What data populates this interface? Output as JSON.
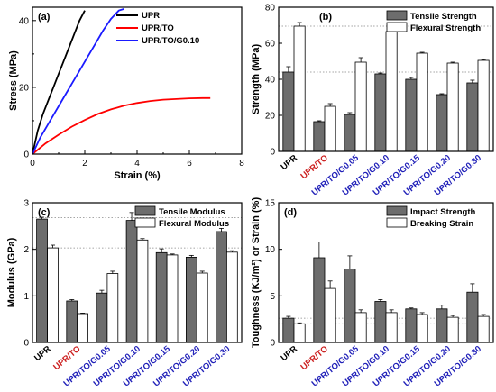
{
  "colors": {
    "black": "#000000",
    "red": "#ff0000",
    "blue": "#1a1aff",
    "gray_bar": "#6d6d6d",
    "white_bar": "#ffffff",
    "cat_red": "#cc2020",
    "cat_blue": "#1f1fb8"
  },
  "chart_data": [
    {
      "id": "a",
      "type": "line",
      "panel_label": "(a)",
      "xlabel": "Strain (%)",
      "ylabel": "Stress (MPa)",
      "xlim": [
        0,
        8
      ],
      "ylim": [
        0,
        44
      ],
      "xticks": [
        0,
        2,
        4,
        6,
        8
      ],
      "yticks": [
        0,
        20,
        40
      ],
      "legend_position": "top-left",
      "series": [
        {
          "name": "UPR",
          "color": "#000000",
          "x": [
            0,
            0.2,
            0.4,
            0.6,
            0.8,
            1.0,
            1.2,
            1.4,
            1.6,
            1.8,
            2.0
          ],
          "y": [
            0,
            7,
            12,
            16,
            20,
            24,
            28,
            32,
            36,
            40,
            43
          ]
        },
        {
          "name": "UPR/TO",
          "color": "#ff0000",
          "x": [
            0,
            0.5,
            1.0,
            1.5,
            2.0,
            2.5,
            3.0,
            3.5,
            4.0,
            4.5,
            5.0,
            5.5,
            6.0,
            6.5,
            6.8
          ],
          "y": [
            0,
            3.2,
            5.8,
            8.2,
            10.2,
            12.0,
            13.4,
            14.5,
            15.3,
            15.9,
            16.3,
            16.5,
            16.7,
            16.8,
            16.8
          ]
        },
        {
          "name": "UPR/TO/G0.10",
          "color": "#1a1aff",
          "x": [
            0,
            0.3,
            0.6,
            0.9,
            1.2,
            1.5,
            1.8,
            2.1,
            2.4,
            2.7,
            3.0,
            3.3,
            3.5
          ],
          "y": [
            0,
            5,
            9,
            13,
            17,
            21,
            25,
            29,
            33,
            37,
            40.5,
            43,
            43.5
          ]
        }
      ]
    },
    {
      "id": "b",
      "type": "bar",
      "panel_label": "(b)",
      "ylabel": "Strength (MPa)",
      "ylim": [
        0,
        80
      ],
      "yticks": [
        0,
        20,
        40,
        60,
        80
      ],
      "legend_position": "top-right",
      "categories": [
        "UPR",
        "UPR/TO",
        "UPR/TO/G0.05",
        "UPR/TO/G0.10",
        "UPR/TO/G0.15",
        "UPR/TO/G0.20",
        "UPR/TO/G0.30"
      ],
      "category_colors": [
        "#000000",
        "#cc2020",
        "#1f1fb8",
        "#1f1fb8",
        "#1f1fb8",
        "#1f1fb8",
        "#1f1fb8"
      ],
      "reference_lines": [
        69.5,
        44
      ],
      "series": [
        {
          "name": "Tensile Strength",
          "fill": "#6d6d6d",
          "values": [
            44,
            16.5,
            20.5,
            43,
            40,
            31.5,
            38
          ],
          "errors": [
            3,
            0.5,
            1,
            0.5,
            1,
            0.5,
            1.5
          ]
        },
        {
          "name": "Flexural Strength",
          "fill": "#ffffff",
          "values": [
            69.5,
            25,
            49.5,
            66.5,
            54.5,
            49,
            50.5
          ],
          "errors": [
            2,
            1.5,
            2.5,
            2.5,
            0.5,
            0.5,
            0.5
          ]
        }
      ]
    },
    {
      "id": "c",
      "type": "bar",
      "panel_label": "(c)",
      "ylabel": "Modulus (GPa)",
      "ylim": [
        0,
        3
      ],
      "yticks": [
        0,
        1,
        2,
        3
      ],
      "legend_position": "top-right",
      "categories": [
        "UPR",
        "UPR/TO",
        "UPR/TO/G0.05",
        "UPR/TO/G0.10",
        "UPR/TO/G0.15",
        "UPR/TO/G0.20",
        "UPR/TO/G0.30"
      ],
      "category_colors": [
        "#000000",
        "#cc2020",
        "#1f1fb8",
        "#1f1fb8",
        "#1f1fb8",
        "#1f1fb8",
        "#1f1fb8"
      ],
      "reference_lines": [
        2.68,
        2.03
      ],
      "series": [
        {
          "name": "Tensile Modulus",
          "fill": "#6d6d6d",
          "values": [
            2.65,
            0.89,
            1.06,
            2.62,
            1.93,
            1.83,
            2.38
          ],
          "errors": [
            0.04,
            0.03,
            0.06,
            0.17,
            0.08,
            0.04,
            0.07
          ]
        },
        {
          "name": "Flexural Modulus",
          "fill": "#ffffff",
          "values": [
            2.03,
            0.62,
            1.48,
            2.2,
            1.88,
            1.49,
            1.94
          ],
          "errors": [
            0.06,
            0.01,
            0.05,
            0.03,
            0.02,
            0.04,
            0.03
          ]
        }
      ]
    },
    {
      "id": "d",
      "type": "bar",
      "panel_label": "(d)",
      "ylabel": "Toughness (KJ/m²) or Strain (%)",
      "ylim": [
        0,
        15
      ],
      "yticks": [
        0,
        5,
        10,
        15
      ],
      "legend_position": "top-right",
      "categories": [
        "UPR",
        "UPR/TO",
        "UPR/TO/G0.05",
        "UPR/TO/G0.10",
        "UPR/TO/G0.15",
        "UPR/TO/G0.20",
        "UPR/TO/G0.30"
      ],
      "category_colors": [
        "#000000",
        "#cc2020",
        "#1f1fb8",
        "#1f1fb8",
        "#1f1fb8",
        "#1f1fb8",
        "#1f1fb8"
      ],
      "reference_lines": [
        2.6,
        2.0
      ],
      "series": [
        {
          "name": "Impact Strength",
          "fill": "#6d6d6d",
          "values": [
            2.6,
            9.1,
            7.9,
            4.4,
            3.6,
            3.6,
            5.4
          ],
          "errors": [
            0.2,
            1.7,
            1.4,
            0.2,
            0.1,
            0.4,
            0.9
          ]
        },
        {
          "name": "Breaking Strain",
          "fill": "#ffffff",
          "values": [
            2.0,
            5.8,
            3.2,
            3.2,
            3.0,
            2.7,
            2.8
          ],
          "errors": [
            0.1,
            0.8,
            0.3,
            0.3,
            0.2,
            0.2,
            0.2
          ]
        }
      ]
    }
  ]
}
